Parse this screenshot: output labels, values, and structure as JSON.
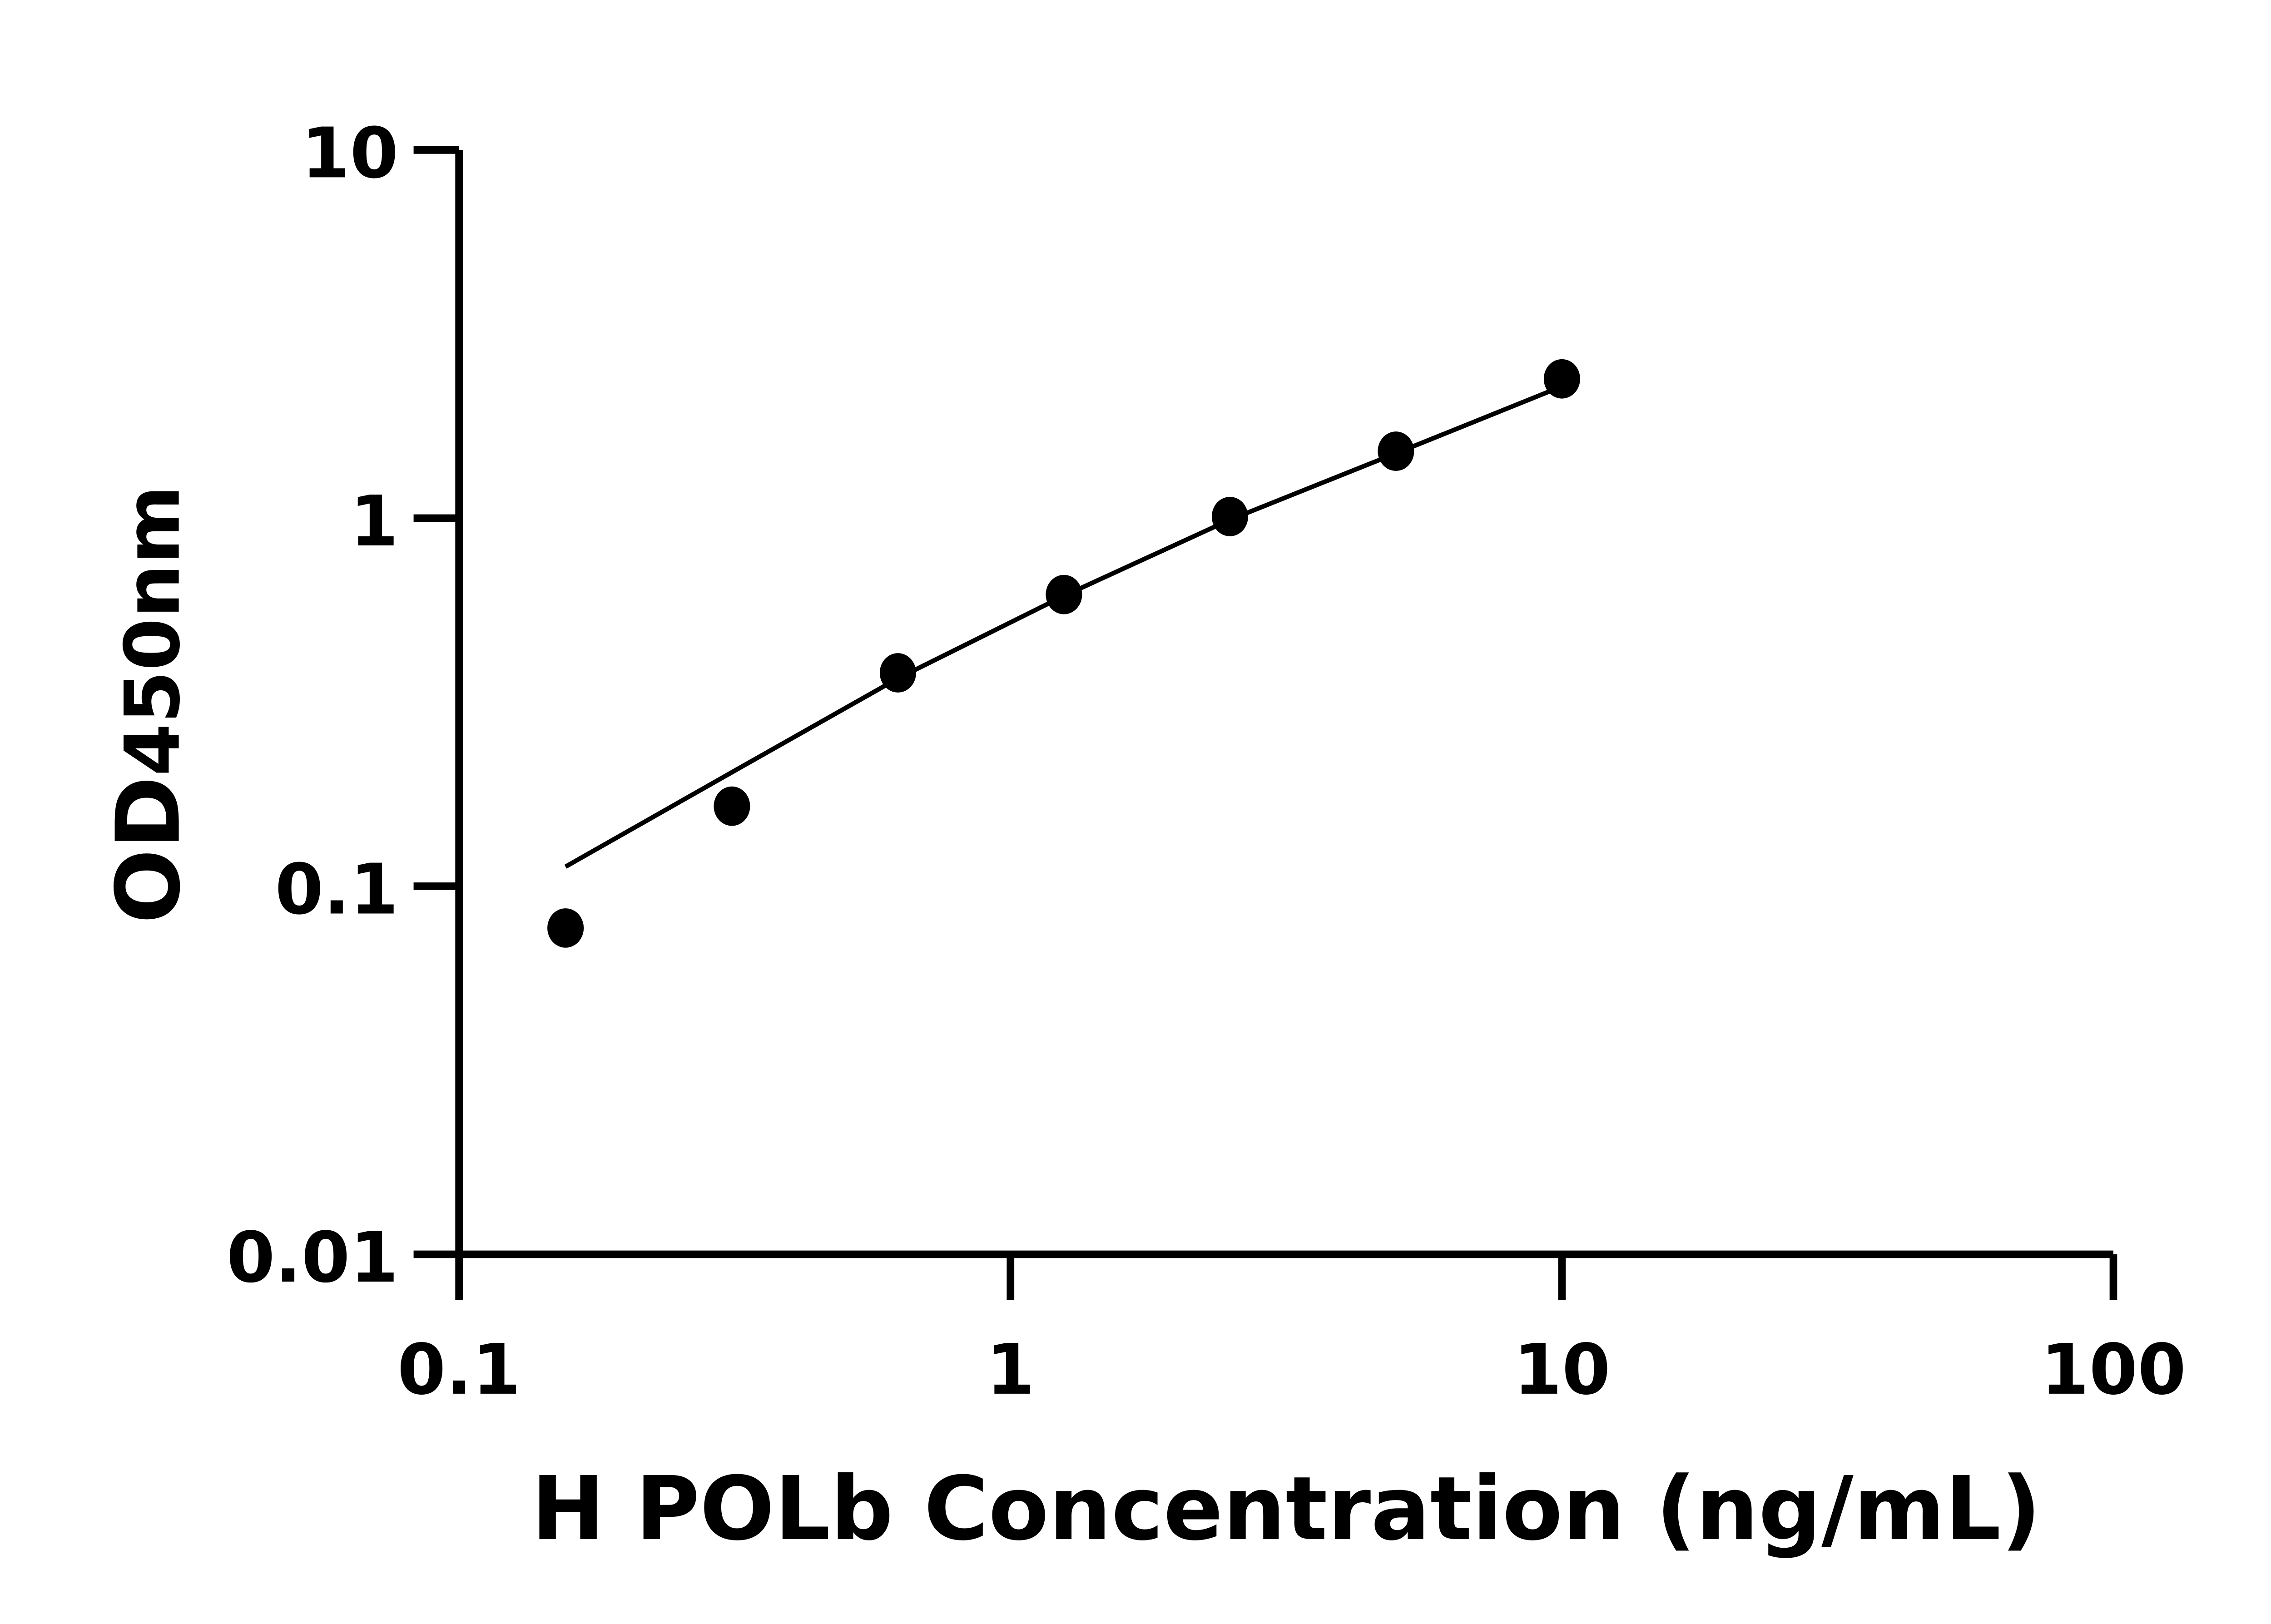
{
  "chart_data": {
    "type": "scatter",
    "title": "",
    "xlabel": "H POLb Concentration (ng/mL)",
    "ylabel": "OD",
    "ylabel_subscript": "450nm",
    "xscale": "log",
    "yscale": "log",
    "xlim": [
      0.1,
      100
    ],
    "ylim": [
      0.01,
      10
    ],
    "xticks": [
      0.1,
      1,
      10,
      100
    ],
    "xtick_labels": [
      "0.1",
      "1",
      "10",
      "100"
    ],
    "yticks": [
      0.01,
      0.1,
      1,
      10
    ],
    "ytick_labels": [
      "0.01",
      "0.1",
      "1",
      "10"
    ],
    "grid": false,
    "marker_color": "#000000",
    "series": [
      {
        "points": [
          {
            "x": 0.156,
            "y": 0.077
          },
          {
            "x": 0.3125,
            "y": 0.165
          },
          {
            "x": 0.625,
            "y": 0.38
          },
          {
            "x": 1.25,
            "y": 0.62
          },
          {
            "x": 2.5,
            "y": 1.01
          },
          {
            "x": 5,
            "y": 1.52
          },
          {
            "x": 10,
            "y": 2.39
          }
        ]
      }
    ],
    "fit_curve": [
      {
        "x": 0.156,
        "y": 0.113
      },
      {
        "x": 0.3125,
        "y": 0.204
      },
      {
        "x": 0.625,
        "y": 0.367
      },
      {
        "x": 1.25,
        "y": 0.615
      },
      {
        "x": 2.5,
        "y": 0.99
      },
      {
        "x": 5,
        "y": 1.5
      },
      {
        "x": 10,
        "y": 2.28
      }
    ]
  }
}
